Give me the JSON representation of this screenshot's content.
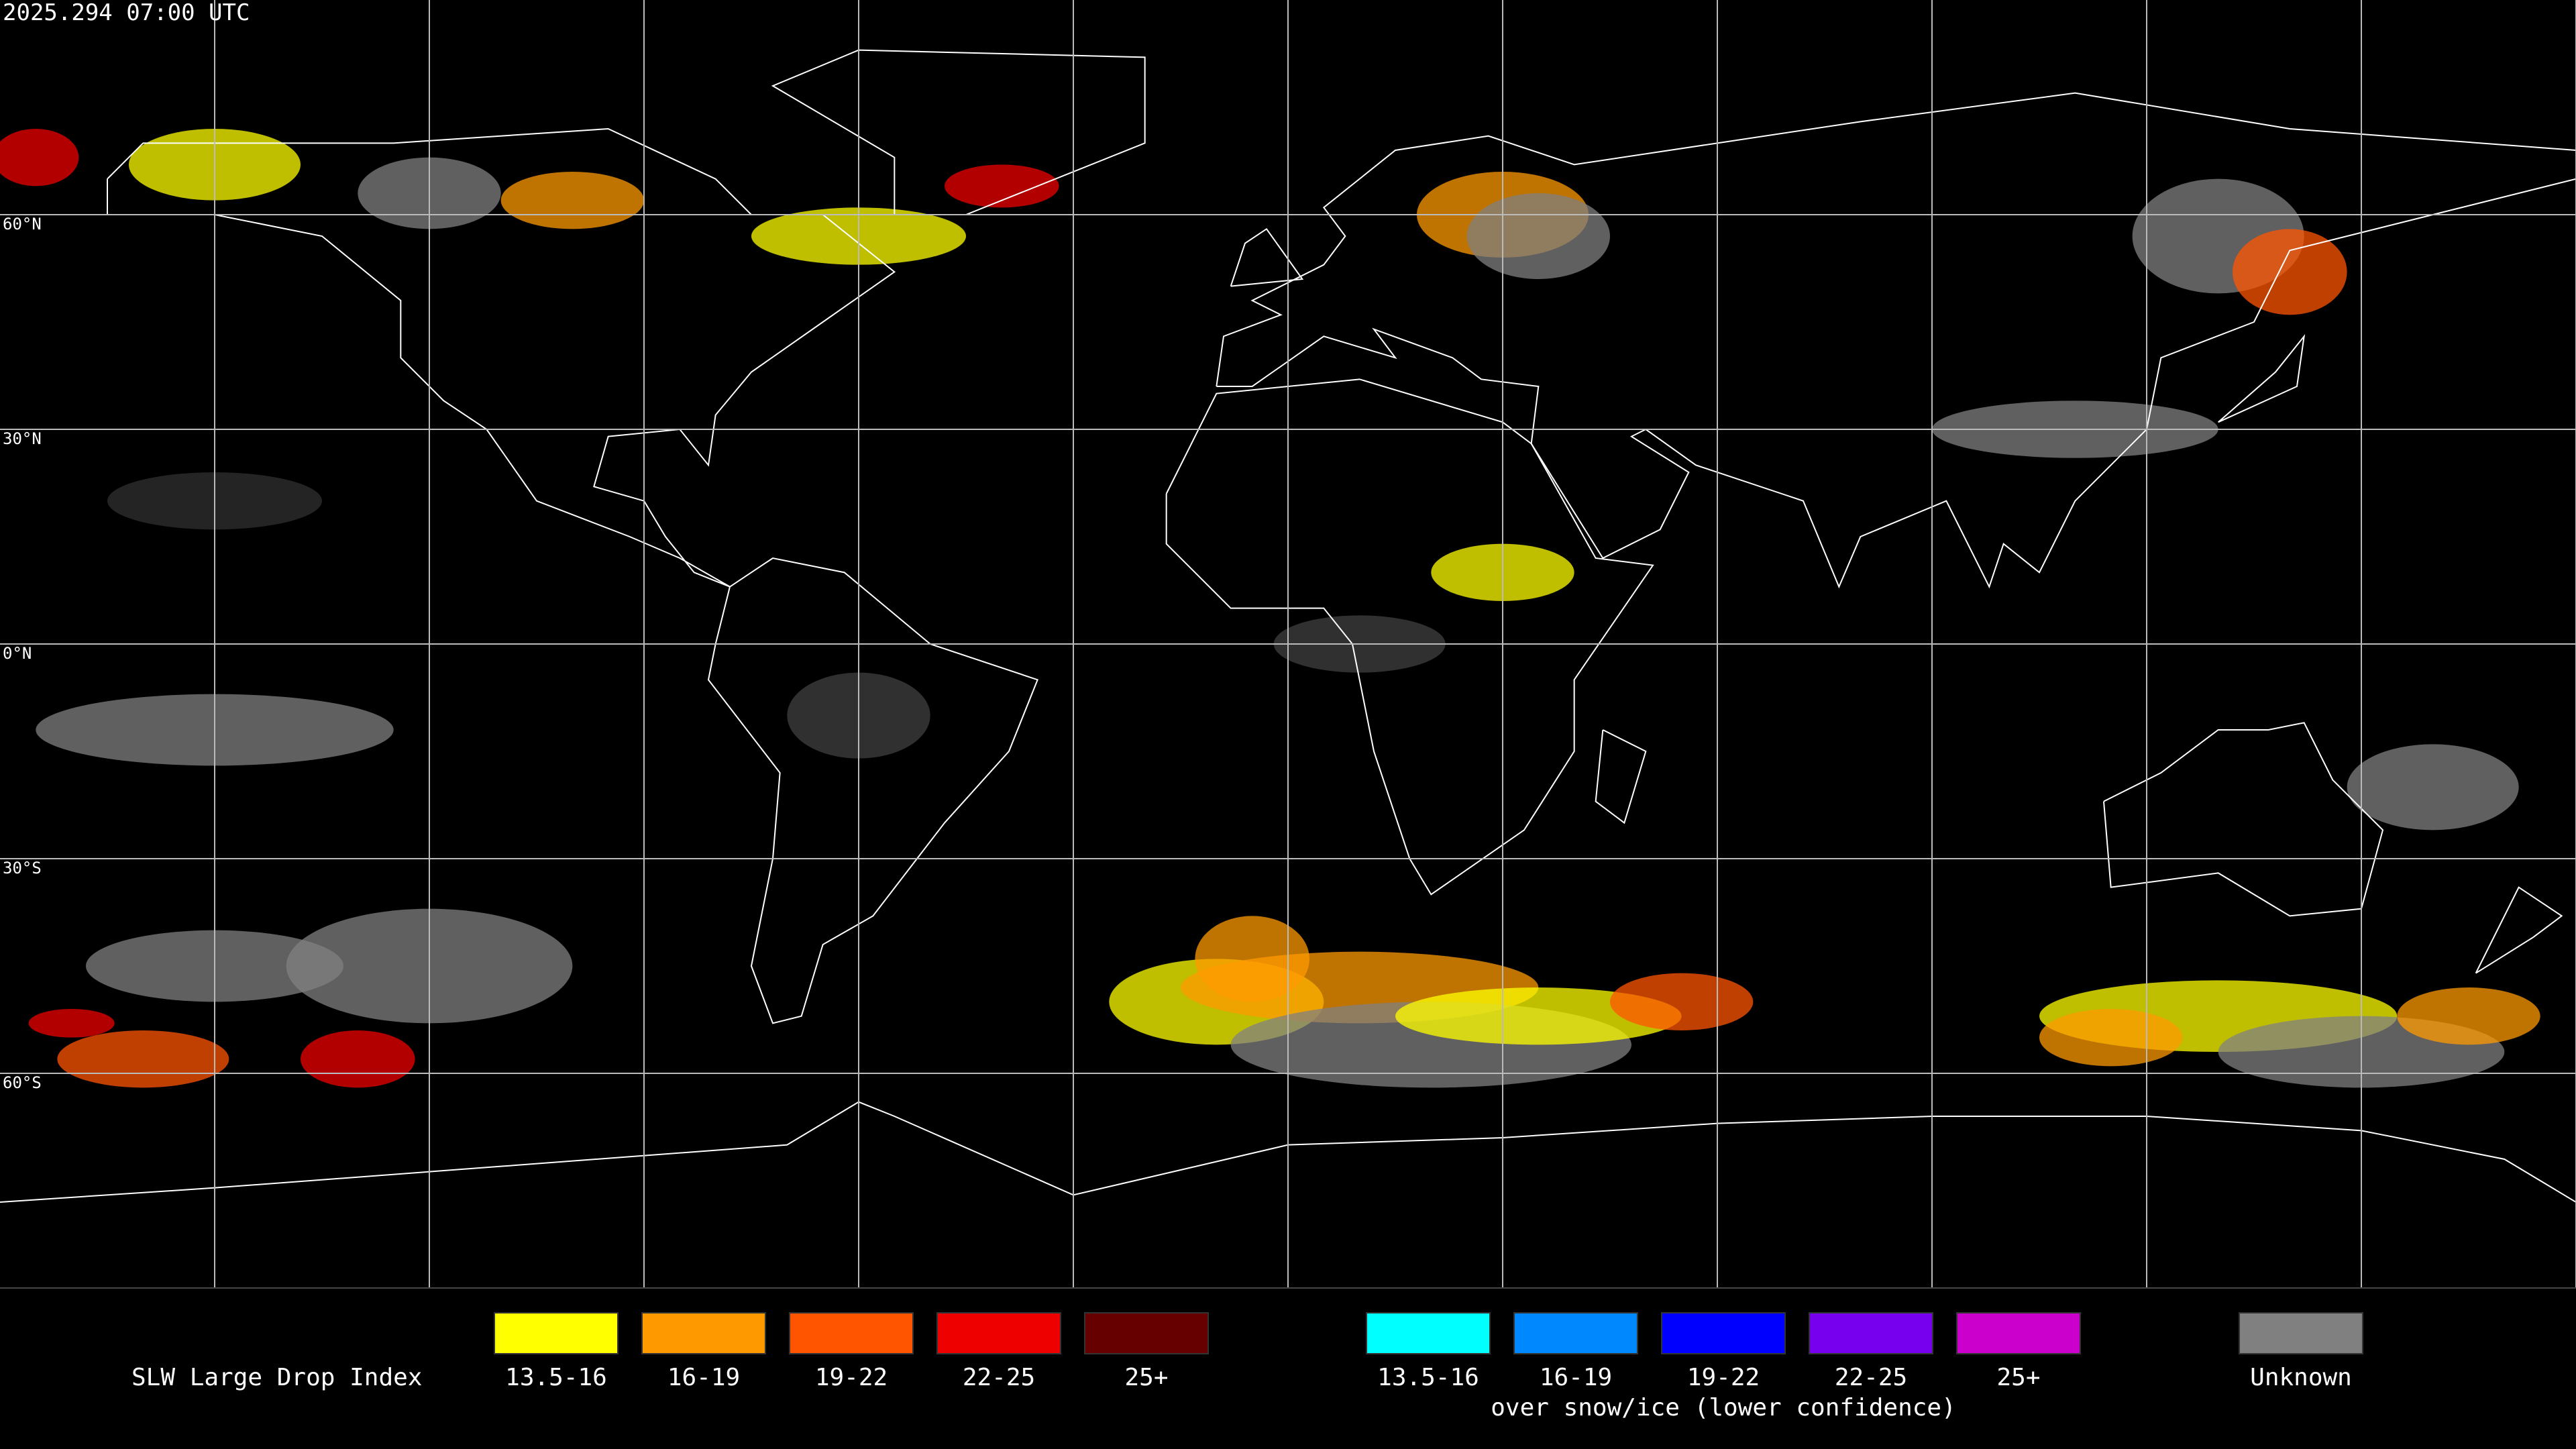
{
  "header": {
    "timestamp": "2025.294 07:00 UTC"
  },
  "map": {
    "latitude_labels": [
      "60°N",
      "30°N",
      "0°N",
      "30°S",
      "60°S"
    ]
  },
  "legend": {
    "title": "SLW Large Drop Index",
    "groups": [
      {
        "items": [
          {
            "label": "13.5-16",
            "color": "#ffff00"
          },
          {
            "label": "16-19",
            "color": "#ff9900"
          },
          {
            "label": "19-22",
            "color": "#ff5500"
          },
          {
            "label": "22-25",
            "color": "#ee0000"
          },
          {
            "label": "25+",
            "color": "#660000"
          }
        ]
      },
      {
        "items": [
          {
            "label": "13.5-16",
            "color": "#00ffff"
          },
          {
            "label": "16-19",
            "color": "#0088ff"
          },
          {
            "label": "19-22",
            "color": "#0000ff"
          },
          {
            "label": "22-25",
            "color": "#7700ee"
          },
          {
            "label": "25+",
            "color": "#cc00cc"
          }
        ],
        "caption": "over snow/ice (lower confidence)"
      },
      {
        "items": [
          {
            "label": "Unknown",
            "color": "#808080"
          }
        ]
      }
    ]
  }
}
